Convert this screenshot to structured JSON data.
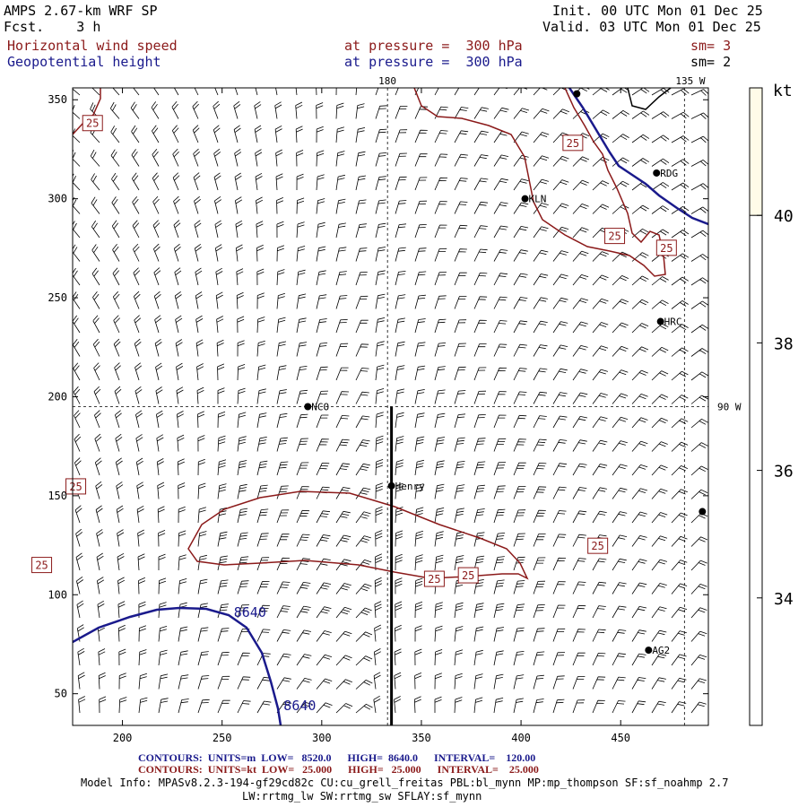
{
  "header": {
    "model": "AMPS 2.67-km WRF SP",
    "fcst": "Fcst.    3 h",
    "init": "Init. 00 UTC Mon 01 Dec 25",
    "valid": "Valid. 03 UTC Mon 01 Dec 25",
    "field1": {
      "name": "Horizontal wind speed",
      "level": "at pressure =  300 hPa",
      "sm": "sm= 3"
    },
    "field2": {
      "name": "Geopotential height",
      "level": "at pressure =  300 hPa",
      "sm": "sm= 2"
    }
  },
  "colors": {
    "wind_contour": "#8b1a1a",
    "height_contour": "#1a1a8c",
    "coast": "#1a1a8c",
    "colorbar_fill": "#fffbe8"
  },
  "chart_data": {
    "type": "contour",
    "x_ticks": [
      200,
      250,
      300,
      350,
      400,
      450
    ],
    "y_ticks": [
      50,
      100,
      150,
      200,
      250,
      300,
      350
    ],
    "xlim": [
      175,
      494
    ],
    "ylim": [
      34,
      356
    ],
    "gridlines": [
      {
        "label": "180",
        "axis": "x",
        "value": 333
      },
      {
        "label": "135 W",
        "axis": "x",
        "value": 482
      },
      {
        "label": "90 W",
        "axis": "y",
        "value": 195
      }
    ],
    "cross_section": {
      "x": 335,
      "y0": 34,
      "y1": 195
    },
    "stations": [
      {
        "name": "KLN",
        "x": 402,
        "y": 300
      },
      {
        "name": "RDG",
        "x": 468,
        "y": 313
      },
      {
        "name": "HRC",
        "x": 470,
        "y": 238
      },
      {
        "name": "NCO",
        "x": 293,
        "y": 195
      },
      {
        "name": "Henry",
        "x": 335,
        "y": 155
      },
      {
        "name": "AG2",
        "x": 464,
        "y": 72
      },
      {
        "name": "",
        "x": 491,
        "y": 142
      },
      {
        "name": "",
        "x": 428,
        "y": 353
      }
    ],
    "wind_contour_labels": [
      {
        "text": "25",
        "x": 185,
        "y": 338
      },
      {
        "text": "25",
        "x": 426,
        "y": 328
      },
      {
        "text": "25",
        "x": 447,
        "y": 281
      },
      {
        "text": "25",
        "x": 473,
        "y": 275
      },
      {
        "text": "25",
        "x": 176.6,
        "y": 154.5
      },
      {
        "text": "25",
        "x": 159.5,
        "y": 114.8
      },
      {
        "text": "25",
        "x": 438.5,
        "y": 124.5
      },
      {
        "text": "25",
        "x": 356.5,
        "y": 107.8
      },
      {
        "text": "25",
        "x": 373.5,
        "y": 109.6
      }
    ],
    "height_contour_labels": [
      {
        "text": "8640",
        "x": 264,
        "y": 91
      },
      {
        "text": "8640",
        "x": 289,
        "y": 44
      }
    ],
    "colorbar": {
      "unit": "kt",
      "ticks": [
        34,
        36,
        38,
        40
      ],
      "range": [
        32,
        42
      ],
      "filled_from": 40
    }
  },
  "footer": {
    "contours1": "CONTOURS:  UNITS=m  LOW=   8520.0      HIGH=  8640.0      INTERVAL=    120.00",
    "contours2": "CONTOURS:  UNITS=kt  LOW=   25.000      HIGH=   25.000      INTERVAL=    25.000",
    "model_info": "Model Info: MPASv8.2.3-194-gf29cd82c CU:cu_grell_freitas PBL:bl_mynn MP:mp_thompson SF:sf_noahmp 2.7",
    "model_info2": "LW:rrtmg_lw SW:rrtmg_sw SFLAY:sf_mynn"
  }
}
